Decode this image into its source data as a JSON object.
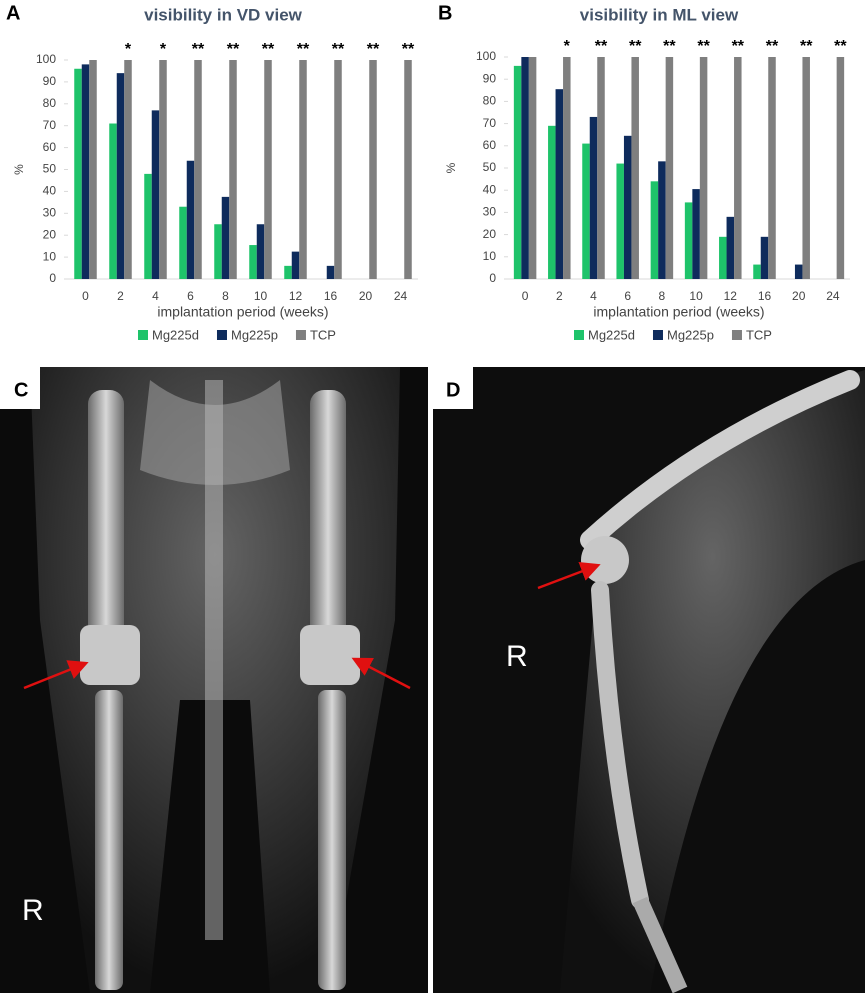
{
  "chart_data": [
    {
      "type": "bar",
      "panel": "A",
      "title": "visibility in VD view",
      "y_label": "%",
      "x_label": "implantation period (weeks)",
      "categories": [
        "0",
        "2",
        "4",
        "6",
        "8",
        "10",
        "12",
        "16",
        "20",
        "24"
      ],
      "annotations": [
        null,
        "*",
        "*",
        "**",
        "**",
        "**",
        "**",
        "**",
        "**",
        "**"
      ],
      "series": [
        {
          "name": "Mg225d",
          "color": "#1ec36a",
          "values": [
            96,
            71,
            48,
            33,
            25,
            15.5,
            6,
            0,
            0,
            0
          ]
        },
        {
          "name": "Mg225p",
          "color": "#0e2b5c",
          "values": [
            98,
            94,
            77,
            54,
            37.5,
            25,
            12.5,
            6,
            0,
            0
          ]
        },
        {
          "name": "TCP",
          "color": "#7f7f7f",
          "values": [
            100,
            100,
            100,
            100,
            100,
            100,
            100,
            100,
            100,
            100
          ]
        }
      ],
      "ylim": [
        0,
        100
      ],
      "yticks": [
        0,
        10,
        20,
        30,
        40,
        50,
        60,
        70,
        80,
        90,
        100
      ],
      "legend": "bottom"
    },
    {
      "type": "bar",
      "panel": "B",
      "title": "visibility in ML view",
      "y_label": "%",
      "x_label": "implantation period (weeks)",
      "categories": [
        "0",
        "2",
        "4",
        "6",
        "8",
        "10",
        "12",
        "16",
        "20",
        "24"
      ],
      "annotations": [
        null,
        "*",
        "**",
        "**",
        "**",
        "**",
        "**",
        "**",
        "**",
        "**"
      ],
      "series": [
        {
          "name": "Mg225d",
          "color": "#1ec36a",
          "values": [
            96,
            69,
            61,
            52,
            44,
            34.5,
            19,
            6.5,
            0,
            0
          ]
        },
        {
          "name": "Mg225p",
          "color": "#0e2b5c",
          "values": [
            100,
            85.5,
            73,
            64.5,
            53,
            40.5,
            28,
            19,
            6.5,
            0
          ]
        },
        {
          "name": "TCP",
          "color": "#7f7f7f",
          "values": [
            100,
            100,
            100,
            100,
            100,
            100,
            100,
            100,
            100,
            100
          ]
        }
      ],
      "ylim": [
        0,
        100
      ],
      "yticks": [
        0,
        10,
        20,
        30,
        40,
        50,
        60,
        70,
        80,
        90,
        100
      ],
      "legend": "bottom"
    }
  ],
  "images": [
    {
      "panel": "C",
      "label": "R"
    },
    {
      "panel": "D",
      "label": "R"
    }
  ]
}
